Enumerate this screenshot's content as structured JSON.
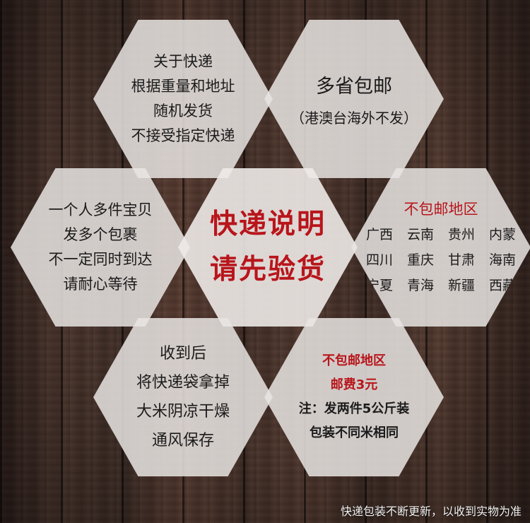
{
  "courier": {
    "lines": [
      "关于快递",
      "根据重量和地址",
      "随机发货",
      "不接受指定快递"
    ]
  },
  "free_shipping": {
    "title": "多省包邮",
    "note": "（港澳台海外不发）"
  },
  "multi_item": {
    "lines": [
      "一个人多件宝贝",
      "发多个包裹",
      "不一定同时到达",
      "请耐心等待"
    ]
  },
  "center": {
    "line1": "快递说明",
    "line2": "请先验货"
  },
  "excluded_regions": {
    "title": "不包邮地区",
    "rows": [
      [
        "广西",
        "云南",
        "贵州",
        "内蒙"
      ],
      [
        "四川",
        "重庆",
        "甘肃",
        "海南"
      ],
      [
        "宁夏",
        "青海",
        "新疆",
        "西藏"
      ]
    ]
  },
  "after_receipt": {
    "lines": [
      "收到后",
      "将快递袋拿掉",
      "大米阴凉干燥",
      "通风保存"
    ]
  },
  "fee_notice": {
    "title": "不包邮地区",
    "fee": "邮费3元",
    "note1": "注：发两件5公斤装",
    "note2": "包装不同米相同"
  },
  "footer": {
    "text": "快递包装不断更新，以收到实物为准"
  },
  "colors": {
    "accent_red": "#b8151b",
    "hex_fill": "#e8e4e2",
    "background": "#3a2a24"
  }
}
